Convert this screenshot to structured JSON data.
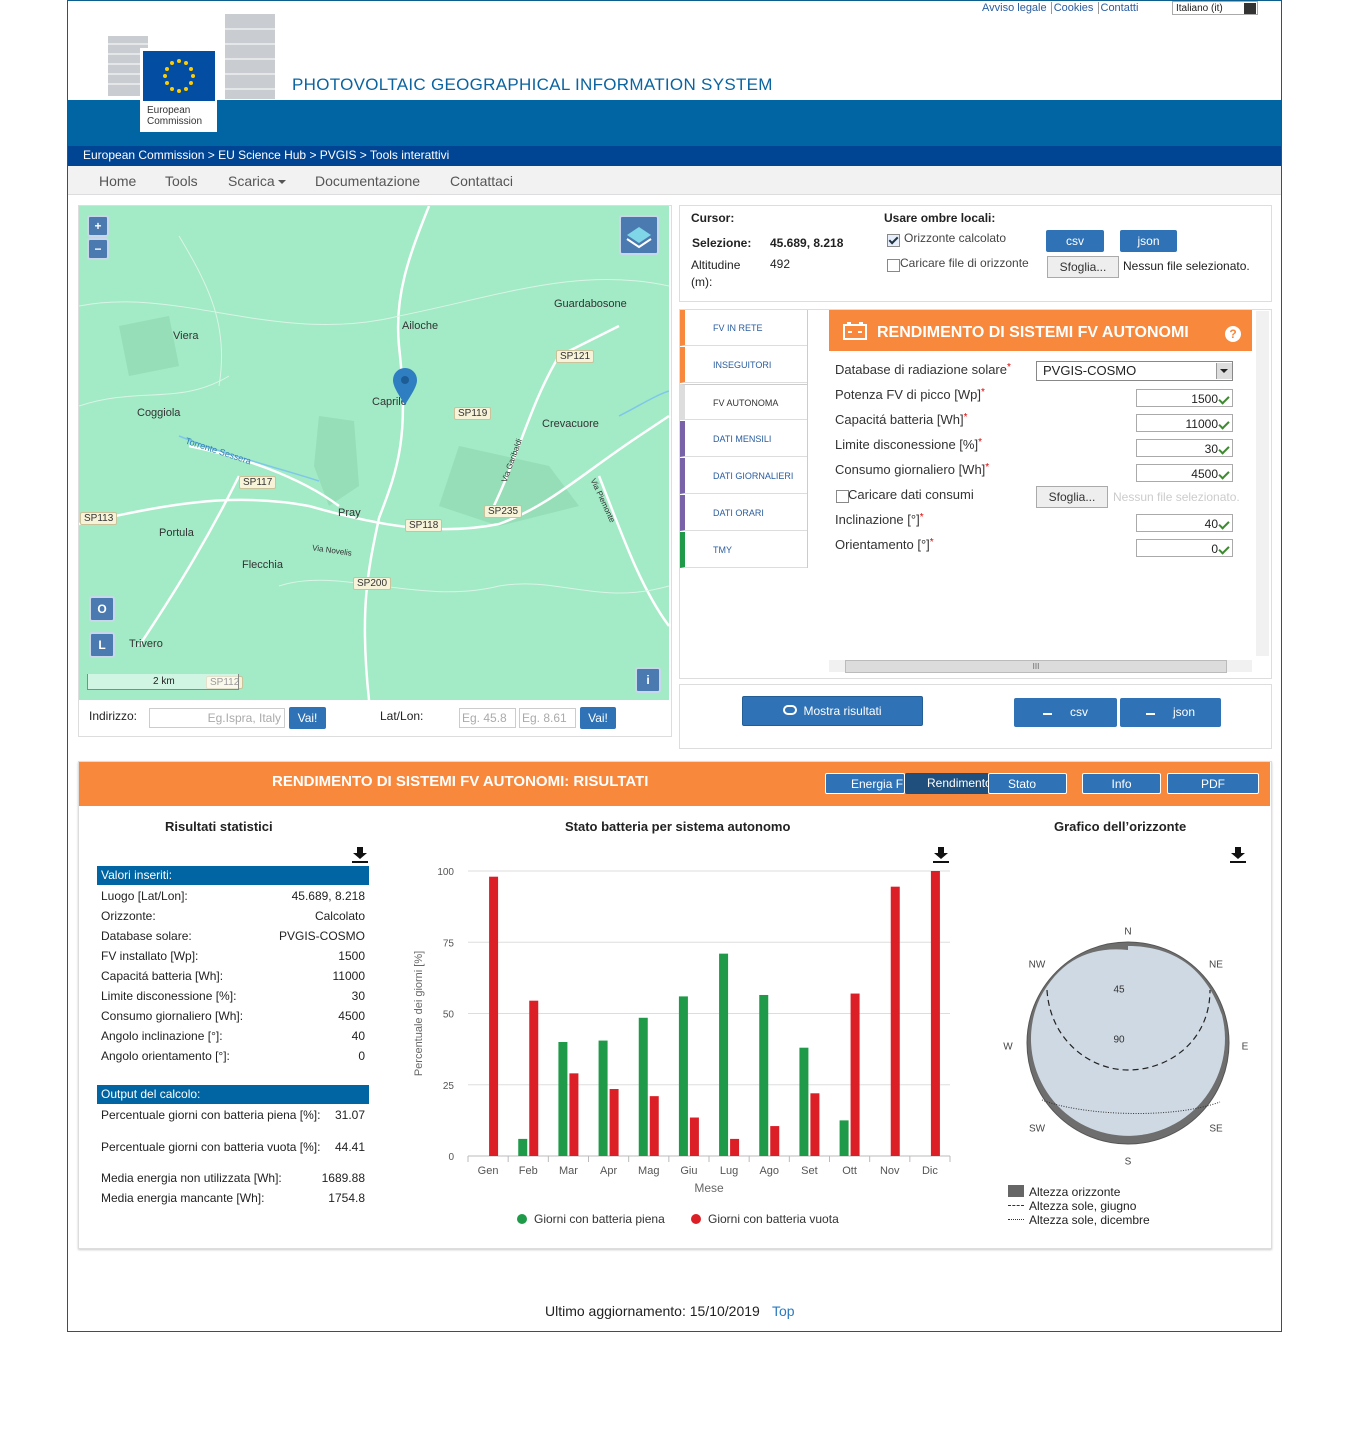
{
  "top_links": [
    "Avviso legale",
    "Cookies",
    "Contatti"
  ],
  "language": "Italiano (it)",
  "logo": [
    "European",
    "Commission"
  ],
  "title": "PHOTOVOLTAIC GEOGRAPHICAL INFORMATION SYSTEM",
  "breadcrumb": "European Commission > EU Science Hub > PVGIS > Tools interattivi",
  "nav": [
    "Home",
    "Tools",
    "Scarica",
    "Documentazione",
    "Contattaci"
  ],
  "map": {
    "zoom_in": "+",
    "zoom_out": "−",
    "labels": [
      "Guardabosone",
      "Viera",
      "Ailoche",
      "SP121",
      "Caprile",
      "SP119",
      "Coggiola",
      "Crevacuore",
      "SP117",
      "SP113",
      "Pray",
      "SP235",
      "SP118",
      "Portula",
      "Flecchia",
      "SP200",
      "Trivero",
      "SP112",
      "Torrente Sessera",
      "Via Garibaldi",
      "Via Piemonte",
      "Via Novelis"
    ],
    "scale": "2 km",
    "buttons": [
      "O",
      "L",
      "i"
    ]
  },
  "address": {
    "label": "Indirizzo:",
    "placeholder": "Eg.Ispra, Italy",
    "go": "Vai!",
    "latlon_label": "Lat/Lon:",
    "lat_placeholder": "Eg. 45.8",
    "lon_placeholder": "Eg. 8.61"
  },
  "info": {
    "cursor": "Cursor:",
    "selection_label": "Selezione:",
    "selection": "45.689, 8.218",
    "altitude_label": "Altitudine (m):",
    "altitude": "492",
    "shadows": "Usare ombre locali:",
    "calc_horizon": "Orizzonte calcolato",
    "upload_horizon": "Caricare file di orizzonte",
    "csv": "csv",
    "json": "json",
    "browse": "Sfoglia...",
    "no_file": "Nessun file selezionato."
  },
  "tabs": [
    "FV IN RETE",
    "INSEGUITORI",
    "FV AUTONOMA",
    "DATI MENSILI",
    "DATI GIORNALIERI",
    "DATI ORARI",
    "TMY"
  ],
  "form": {
    "title": "RENDIMENTO DI SISTEMI FV AUTONOMI",
    "help": "?",
    "required": "*",
    "database_label": "Database di radiazione solare",
    "database": "PVGIS-COSMO",
    "fields": [
      {
        "label": "Potenza FV di picco [Wp]",
        "value": "1500"
      },
      {
        "label": "Capacitá batteria [Wh]",
        "value": "11000"
      },
      {
        "label": "Limite disconessione [%]",
        "value": "30"
      },
      {
        "label": "Consumo giornaliero [Wh]",
        "value": "4500"
      }
    ],
    "consumi_label": "Caricare dati consumi",
    "browse": "Sfoglia...",
    "no_file": "Nessun file selezionato.",
    "fields2": [
      {
        "label": "Inclinazione [°]",
        "value": "40"
      },
      {
        "label": "Orientamento [°]",
        "value": "0"
      }
    ],
    "scroll_grip": "III"
  },
  "actions": {
    "show": "Mostra risultati",
    "csv": "csv",
    "json": "json"
  },
  "results": {
    "title": "RENDIMENTO DI SISTEMI FV AUTONOMI: RISULTATI",
    "buttons": [
      "Energia F",
      "Rendimento",
      "Stato batter",
      "Info",
      "PDF"
    ],
    "stats_title": "Risultati statistici",
    "inputs_header": "Valori inseriti:",
    "inputs": [
      [
        "Luogo [Lat/Lon]:",
        "45.689, 8.218"
      ],
      [
        "Orizzonte:",
        "Calcolato"
      ],
      [
        "Database solare:",
        "PVGIS-COSMO"
      ],
      [
        "FV installato [Wp]:",
        "1500"
      ],
      [
        "Capacitá batteria [Wh]:",
        "11000"
      ],
      [
        "Limite disconessione [%]:",
        "30"
      ],
      [
        "Consumo giornaliero [Wh]:",
        "4500"
      ],
      [
        "Angolo inclinazione [°]:",
        "40"
      ],
      [
        "Angolo orientamento [°]:",
        "0"
      ]
    ],
    "outputs_header": "Output del calcolo:",
    "outputs": [
      [
        "Percentuale giorni con batteria piena [%]:",
        "31.07"
      ],
      [
        "Percentuale giorni con batteria vuota [%]:",
        "44.41"
      ],
      [
        "Media energia non utilizzata [Wh]:",
        "1689.88"
      ],
      [
        "Media energia mancante [Wh]:",
        "1754.8"
      ]
    ],
    "battery_chart": {
      "type": "bar",
      "title": "Stato batteria per sistema autonomo",
      "xlabel": "Mese",
      "ylabel": "Percentuale dei giorni [%]",
      "categories": [
        "Gen",
        "Feb",
        "Mar",
        "Apr",
        "Mag",
        "Giu",
        "Lug",
        "Ago",
        "Set",
        "Ott",
        "Nov",
        "Dic"
      ],
      "series": [
        {
          "name": "Giorni con batteria piena",
          "color": "#1f9a48",
          "values": [
            0,
            6,
            40,
            40.5,
            48.5,
            56,
            71,
            56.5,
            38,
            12.5,
            0,
            0
          ]
        },
        {
          "name": "Giorni con batteria vuota",
          "color": "#dc1f26",
          "values": [
            98,
            54.5,
            29,
            23.5,
            21,
            13.5,
            6,
            10.5,
            22,
            57,
            94.5,
            100
          ]
        }
      ],
      "ylim": [
        0,
        100
      ],
      "yticks": [
        0,
        25,
        50,
        75,
        100
      ],
      "grid": true
    },
    "horizon": {
      "title": "Grafico dell’orizzonte",
      "directions": [
        "N",
        "NE",
        "E",
        "SE",
        "S",
        "SW",
        "W",
        "NW"
      ],
      "rings": [
        "45",
        "90"
      ],
      "legend": [
        "Altezza orizzonte",
        "Altezza sole, giugno",
        "Altezza sole, dicembre"
      ]
    }
  },
  "footer": {
    "updated": "Ultimo aggiornamento: 15/10/2019",
    "top": "Top"
  }
}
